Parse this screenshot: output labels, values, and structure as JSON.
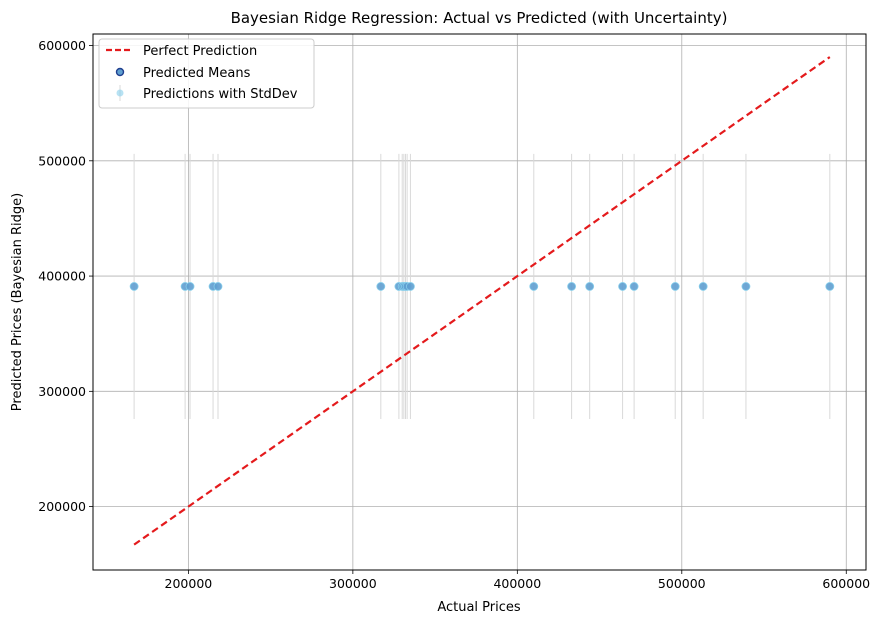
{
  "chart_data": {
    "type": "scatter",
    "title": "Bayesian Ridge Regression: Actual vs Predicted (with Uncertainty)",
    "xlabel": "Actual Prices",
    "ylabel": "Predicted Prices (Bayesian Ridge)",
    "xlim": [
      142000,
      612000
    ],
    "ylim": [
      145000,
      610000
    ],
    "xticks": [
      200000,
      300000,
      400000,
      500000,
      600000
    ],
    "yticks": [
      200000,
      300000,
      400000,
      500000,
      600000
    ],
    "xtick_labels": [
      "200000",
      "300000",
      "400000",
      "500000",
      "600000"
    ],
    "ytick_labels": [
      "200000",
      "300000",
      "400000",
      "500000",
      "600000"
    ],
    "grid": true,
    "legend_position": "top-left",
    "colors": {
      "perfect_line": "#e41a1c",
      "mean_marker": "#5f9fd0",
      "mean_edge": "#1f3f8f",
      "errorbar": "#d9d9d9",
      "stddev_marker": "#87ceeb",
      "grid": "#b0b0b0"
    },
    "series": [
      {
        "name": "Perfect Prediction",
        "kind": "line",
        "x": [
          167000,
          590000
        ],
        "y": [
          167000,
          590000
        ]
      },
      {
        "name": "Predicted Means",
        "kind": "scatter",
        "x": [
          167000,
          198000,
          201000,
          215000,
          218000,
          317000,
          328000,
          330000,
          331000,
          332000,
          333000,
          335000,
          410000,
          433000,
          444000,
          464000,
          471000,
          496000,
          513000,
          539000,
          590000
        ],
        "y": [
          391000,
          391000,
          391000,
          391000,
          391000,
          391000,
          391000,
          391000,
          391000,
          391000,
          391000,
          391000,
          391000,
          391000,
          391000,
          391000,
          391000,
          391000,
          391000,
          391000,
          391000
        ]
      },
      {
        "name": "Predictions with StdDev",
        "kind": "errorbar",
        "x": [
          167000,
          198000,
          201000,
          215000,
          218000,
          317000,
          328000,
          330000,
          331000,
          332000,
          333000,
          335000,
          410000,
          433000,
          444000,
          464000,
          471000,
          496000,
          513000,
          539000,
          590000
        ],
        "y": [
          391000,
          391000,
          391000,
          391000,
          391000,
          391000,
          391000,
          391000,
          391000,
          391000,
          391000,
          391000,
          391000,
          391000,
          391000,
          391000,
          391000,
          391000,
          391000,
          391000,
          391000
        ],
        "yerr": 115000
      }
    ]
  }
}
